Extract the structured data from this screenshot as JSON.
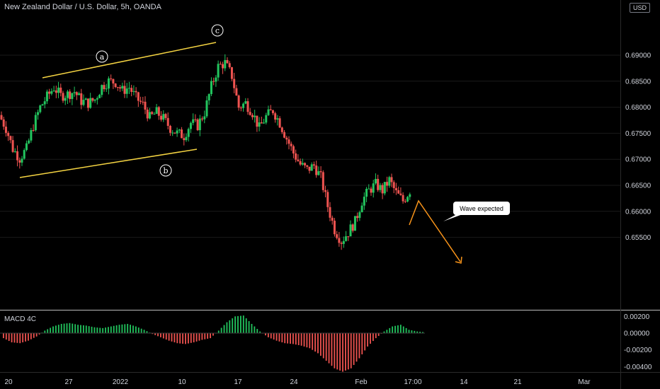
{
  "header": {
    "title": "New Zealand Dollar / U.S. Dollar, 5h, OANDA",
    "currency_badge": "USD"
  },
  "macd_panel": {
    "title": "MACD 4C"
  },
  "annotation": {
    "callout_text": "Wave expected",
    "wave_labels": [
      "a",
      "b",
      "c"
    ]
  },
  "colors": {
    "up": "#26a69a",
    "up_bright": "#22c55e",
    "down": "#ef5350",
    "channel": "#f5d442",
    "projection": "#f7931a",
    "grid": "#1a1a1a",
    "separator": "#bcbcbc"
  },
  "chart_data": [
    {
      "type": "line",
      "title": "New Zealand Dollar / U.S. Dollar, 5h, OANDA",
      "x_ticks": [
        "20",
        "27",
        "2022",
        "10",
        "17",
        "24",
        "Feb",
        "17:00",
        "14",
        "21",
        "Mar"
      ],
      "y_ticks": [
        "0.69000",
        "0.68500",
        "0.68000",
        "0.67500",
        "0.67000",
        "0.66500",
        "0.66000",
        "0.65500"
      ],
      "ylim": [
        0.653,
        0.6925
      ],
      "series": [
        {
          "values": [
            0.6785,
            0.676,
            0.672,
            0.6702,
            0.672,
            0.6765,
            0.68,
            0.682,
            0.6838,
            0.6822,
            0.6825,
            0.683,
            0.6812,
            0.6808,
            0.6815,
            0.684,
            0.685,
            0.6848,
            0.6832,
            0.6838,
            0.6818,
            0.6805,
            0.678,
            0.679,
            0.6778,
            0.676,
            0.675,
            0.6745,
            0.677,
            0.6765,
            0.679,
            0.684,
            0.6878,
            0.6885,
            0.686,
            0.68,
            0.6808,
            0.679,
            0.676,
            0.6782,
            0.6794,
            0.677,
            0.674,
            0.6712,
            0.669,
            0.668,
            0.6688,
            0.6665,
            0.661,
            0.6565,
            0.6543,
            0.656,
            0.658,
            0.662,
            0.664,
            0.6652,
            0.664,
            0.666,
            0.6635,
            0.662,
            0.664
          ]
        }
      ]
    },
    {
      "type": "bar",
      "title": "MACD 4C",
      "y_ticks": [
        "0.00200",
        "0.00000",
        "-0.00200",
        "-0.00400"
      ],
      "ylim": [
        -0.0046,
        0.0023
      ],
      "values": [
        -0.0006,
        -0.0011,
        -0.0012,
        -0.0009,
        -0.0004,
        0.0003,
        0.0008,
        0.0011,
        0.0012,
        0.001,
        0.0009,
        0.0007,
        0.0006,
        0.0008,
        0.001,
        0.0011,
        0.0008,
        0.0004,
        -0.0001,
        -0.0005,
        -0.0009,
        -0.0012,
        -0.0013,
        -0.0011,
        -0.0008,
        -0.0006,
        0.0003,
        0.0013,
        0.002,
        0.0021,
        0.0011,
        0.0002,
        -0.0005,
        -0.0009,
        -0.0012,
        -0.0013,
        -0.0015,
        -0.0018,
        -0.0024,
        -0.0033,
        -0.0042,
        -0.0046,
        -0.0042,
        -0.003,
        -0.0016,
        -0.0006,
        0.0002,
        0.0008,
        0.001,
        0.0004,
        0.0002,
        0.0001
      ]
    }
  ]
}
